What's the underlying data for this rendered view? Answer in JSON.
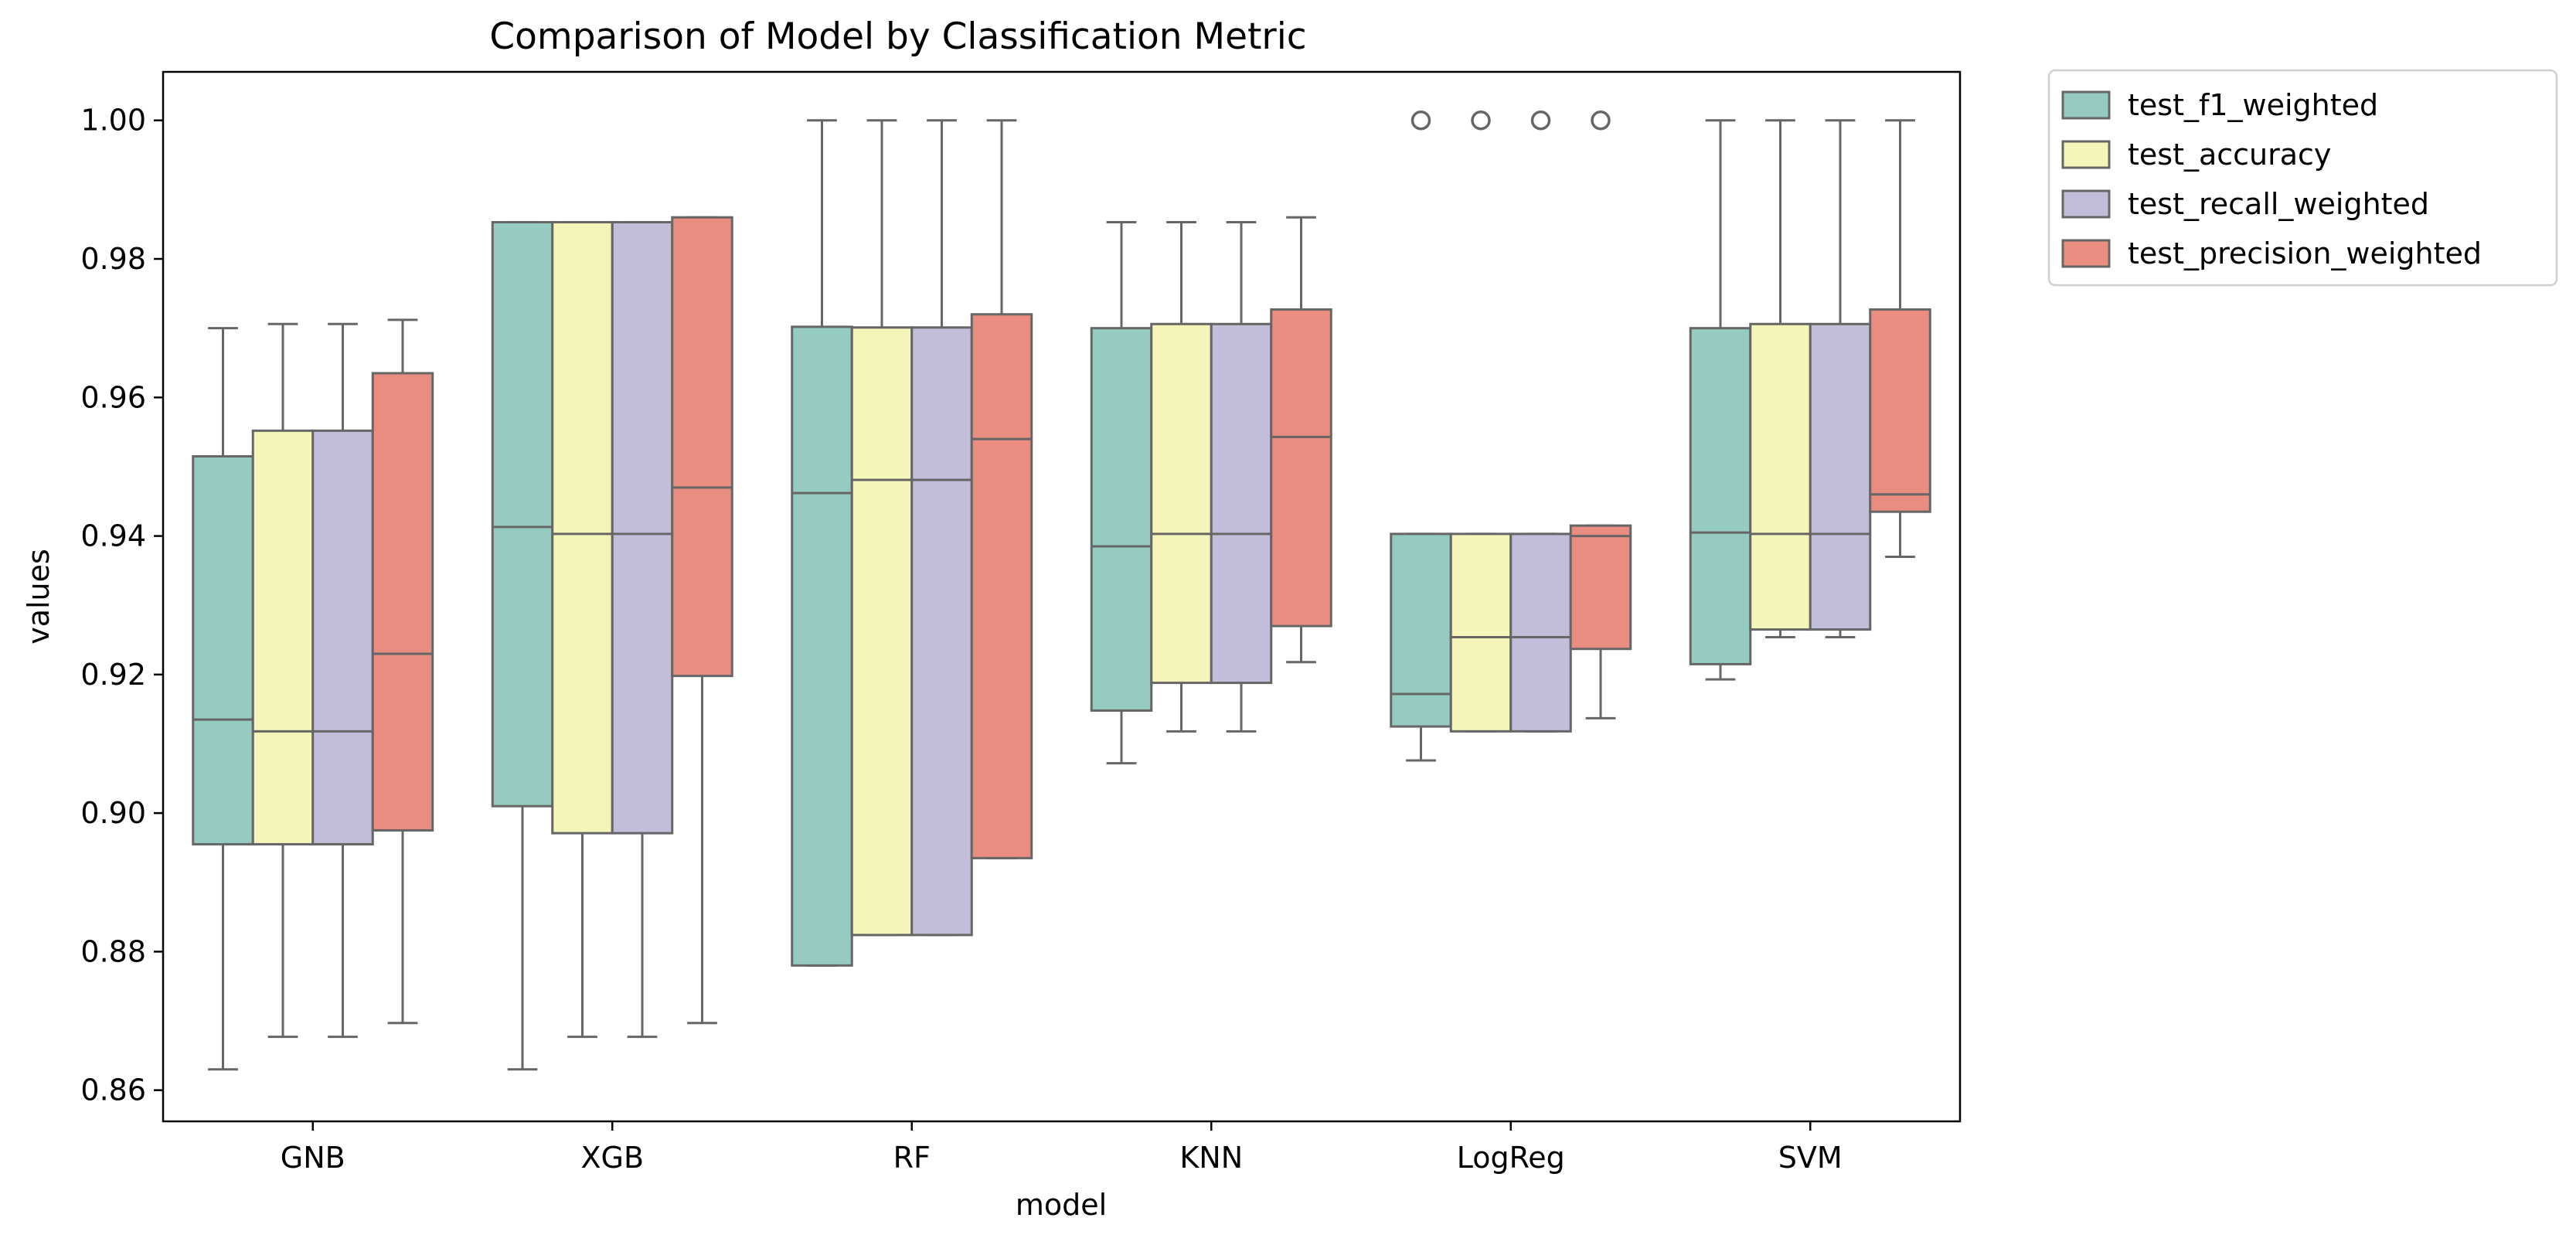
{
  "chart_data": {
    "type": "box",
    "title": "Comparison of Model by Classification Metric",
    "xlabel": "model",
    "ylabel": "values",
    "ylim": [
      0.8555,
      1.007
    ],
    "yticks": [
      0.86,
      0.88,
      0.9,
      0.92,
      0.94,
      0.96,
      0.98,
      1.0
    ],
    "ytick_labels": [
      "0.86",
      "0.88",
      "0.90",
      "0.92",
      "0.94",
      "0.96",
      "0.98",
      "1.00"
    ],
    "categories": [
      "GNB",
      "XGB",
      "RF",
      "KNN",
      "LogReg",
      "SVM"
    ],
    "legend_position": "outside-top-right",
    "grid": false,
    "box_edge_color": "#666666",
    "series": [
      {
        "name": "test_f1_weighted",
        "color": "#96cbc1",
        "boxes": [
          {
            "whisker_low": 0.863,
            "q1": 0.8955,
            "median": 0.9135,
            "q3": 0.9515,
            "whisker_high": 0.97,
            "outliers": []
          },
          {
            "whisker_low": 0.863,
            "q1": 0.901,
            "median": 0.9413,
            "q3": 0.9853,
            "whisker_high": 0.9853,
            "outliers": []
          },
          {
            "whisker_low": 0.878,
            "q1": 0.878,
            "median": 0.9462,
            "q3": 0.9702,
            "whisker_high": 1.0,
            "outliers": []
          },
          {
            "whisker_low": 0.9072,
            "q1": 0.9148,
            "median": 0.9385,
            "q3": 0.97,
            "whisker_high": 0.9853,
            "outliers": []
          },
          {
            "whisker_low": 0.9076,
            "q1": 0.9125,
            "median": 0.9172,
            "q3": 0.9403,
            "whisker_high": 0.9403,
            "outliers": [
              1.0
            ]
          },
          {
            "whisker_low": 0.9193,
            "q1": 0.9215,
            "median": 0.9405,
            "q3": 0.97,
            "whisker_high": 1.0,
            "outliers": []
          }
        ]
      },
      {
        "name": "test_accuracy",
        "color": "#f5f5b9",
        "boxes": [
          {
            "whisker_low": 0.8677,
            "q1": 0.8955,
            "median": 0.9118,
            "q3": 0.9552,
            "whisker_high": 0.9706,
            "outliers": []
          },
          {
            "whisker_low": 0.8677,
            "q1": 0.8971,
            "median": 0.9403,
            "q3": 0.9853,
            "whisker_high": 0.9853,
            "outliers": []
          },
          {
            "whisker_low": 0.8824,
            "q1": 0.8824,
            "median": 0.9481,
            "q3": 0.9701,
            "whisker_high": 1.0,
            "outliers": []
          },
          {
            "whisker_low": 0.9118,
            "q1": 0.9188,
            "median": 0.9403,
            "q3": 0.9706,
            "whisker_high": 0.9853,
            "outliers": []
          },
          {
            "whisker_low": 0.9118,
            "q1": 0.9118,
            "median": 0.9254,
            "q3": 0.9403,
            "whisker_high": 0.9403,
            "outliers": [
              1.0
            ]
          },
          {
            "whisker_low": 0.9254,
            "q1": 0.9265,
            "median": 0.9403,
            "q3": 0.9706,
            "whisker_high": 1.0,
            "outliers": []
          }
        ]
      },
      {
        "name": "test_recall_weighted",
        "color": "#c2bdd8",
        "boxes": [
          {
            "whisker_low": 0.8677,
            "q1": 0.8955,
            "median": 0.9118,
            "q3": 0.9552,
            "whisker_high": 0.9706,
            "outliers": []
          },
          {
            "whisker_low": 0.8677,
            "q1": 0.8971,
            "median": 0.9403,
            "q3": 0.9853,
            "whisker_high": 0.9853,
            "outliers": []
          },
          {
            "whisker_low": 0.8824,
            "q1": 0.8824,
            "median": 0.9481,
            "q3": 0.9701,
            "whisker_high": 1.0,
            "outliers": []
          },
          {
            "whisker_low": 0.9118,
            "q1": 0.9188,
            "median": 0.9403,
            "q3": 0.9706,
            "whisker_high": 0.9853,
            "outliers": []
          },
          {
            "whisker_low": 0.9118,
            "q1": 0.9118,
            "median": 0.9254,
            "q3": 0.9403,
            "whisker_high": 0.9403,
            "outliers": [
              1.0
            ]
          },
          {
            "whisker_low": 0.9254,
            "q1": 0.9265,
            "median": 0.9403,
            "q3": 0.9706,
            "whisker_high": 1.0,
            "outliers": []
          }
        ]
      },
      {
        "name": "test_precision_weighted",
        "color": "#ea8d81",
        "boxes": [
          {
            "whisker_low": 0.8697,
            "q1": 0.8975,
            "median": 0.923,
            "q3": 0.9635,
            "whisker_high": 0.9712,
            "outliers": []
          },
          {
            "whisker_low": 0.8697,
            "q1": 0.9198,
            "median": 0.947,
            "q3": 0.986,
            "whisker_high": 0.986,
            "outliers": []
          },
          {
            "whisker_low": 0.8935,
            "q1": 0.8935,
            "median": 0.954,
            "q3": 0.972,
            "whisker_high": 1.0,
            "outliers": []
          },
          {
            "whisker_low": 0.9218,
            "q1": 0.927,
            "median": 0.9543,
            "q3": 0.9727,
            "whisker_high": 0.986,
            "outliers": []
          },
          {
            "whisker_low": 0.9137,
            "q1": 0.9237,
            "median": 0.94,
            "q3": 0.9415,
            "whisker_high": 0.9415,
            "outliers": [
              1.0
            ]
          },
          {
            "whisker_low": 0.937,
            "q1": 0.9435,
            "median": 0.946,
            "q3": 0.9727,
            "whisker_high": 1.0,
            "outliers": []
          }
        ]
      }
    ]
  }
}
